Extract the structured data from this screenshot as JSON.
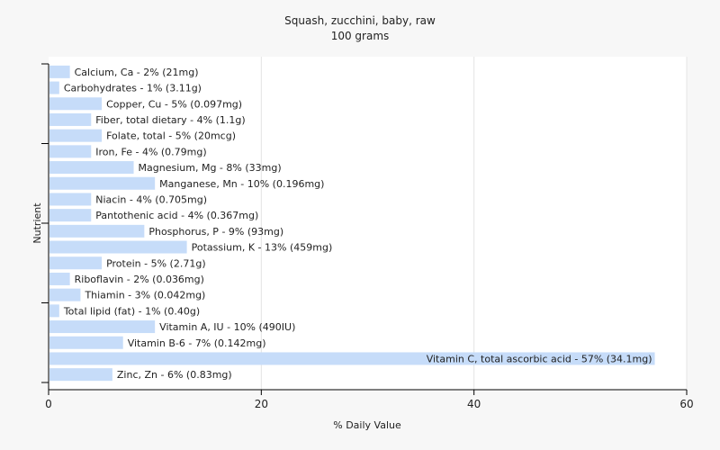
{
  "chart_data": {
    "type": "bar",
    "orientation": "horizontal",
    "title": "Squash, zucchini, baby, raw",
    "subtitle": "100 grams",
    "xlabel": "% Daily Value",
    "ylabel": "Nutrient",
    "xlim": [
      0,
      60
    ],
    "xticks": [
      0,
      20,
      40,
      60
    ],
    "grid": true,
    "bar_color": "#c6dcf9",
    "categories": [
      "Calcium, Ca - 2% (21mg)",
      "Carbohydrates - 1% (3.11g)",
      "Copper, Cu - 5% (0.097mg)",
      "Fiber, total dietary - 4% (1.1g)",
      "Folate, total - 5% (20mcg)",
      "Iron, Fe - 4% (0.79mg)",
      "Magnesium, Mg - 8% (33mg)",
      "Manganese, Mn - 10% (0.196mg)",
      "Niacin - 4% (0.705mg)",
      "Pantothenic acid - 4% (0.367mg)",
      "Phosphorus, P - 9% (93mg)",
      "Potassium, K - 13% (459mg)",
      "Protein - 5% (2.71g)",
      "Riboflavin - 2% (0.036mg)",
      "Thiamin - 3% (0.042mg)",
      "Total lipid (fat) - 1% (0.40g)",
      "Vitamin A, IU - 10% (490IU)",
      "Vitamin B-6 - 7% (0.142mg)",
      "Vitamin C, total ascorbic acid - 57% (34.1mg)",
      "Zinc, Zn - 6% (0.83mg)"
    ],
    "values": [
      2,
      1,
      5,
      4,
      5,
      4,
      8,
      10,
      4,
      4,
      9,
      13,
      5,
      2,
      3,
      1,
      10,
      7,
      57,
      6
    ]
  }
}
